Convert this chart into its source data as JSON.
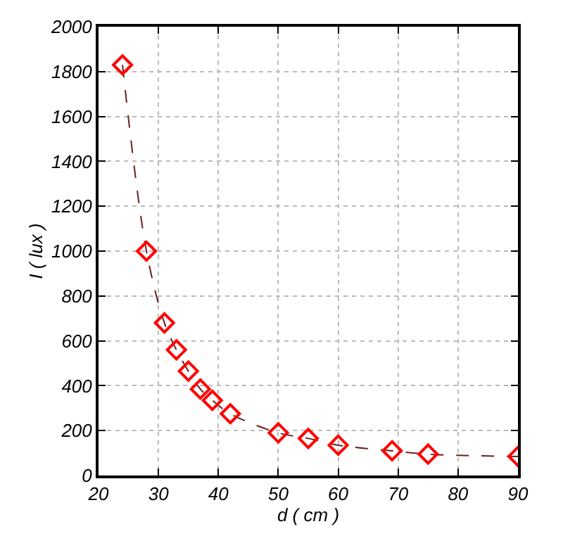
{
  "chart_data": {
    "type": "line",
    "xlabel": "d ( cm )",
    "ylabel": "I ( lux )",
    "x": [
      24,
      28,
      31,
      33,
      35,
      37,
      39,
      42,
      50,
      55,
      60,
      69,
      75,
      90
    ],
    "series": [
      {
        "color": "#ff0000",
        "values": [
          1830,
          1000,
          680,
          560,
          465,
          385,
          335,
          275,
          190,
          165,
          135,
          110,
          95,
          85
        ]
      }
    ],
    "xlim": [
      20,
      90
    ],
    "xticks": [
      20,
      30,
      40,
      50,
      60,
      70,
      80,
      90
    ],
    "ylim": [
      0,
      2000
    ],
    "yticks": [
      0,
      200,
      400,
      600,
      800,
      1000,
      1200,
      1400,
      1600,
      1800,
      2000
    ],
    "grid": true,
    "marker": "diamond",
    "line_style": "dashed",
    "legend": false
  }
}
